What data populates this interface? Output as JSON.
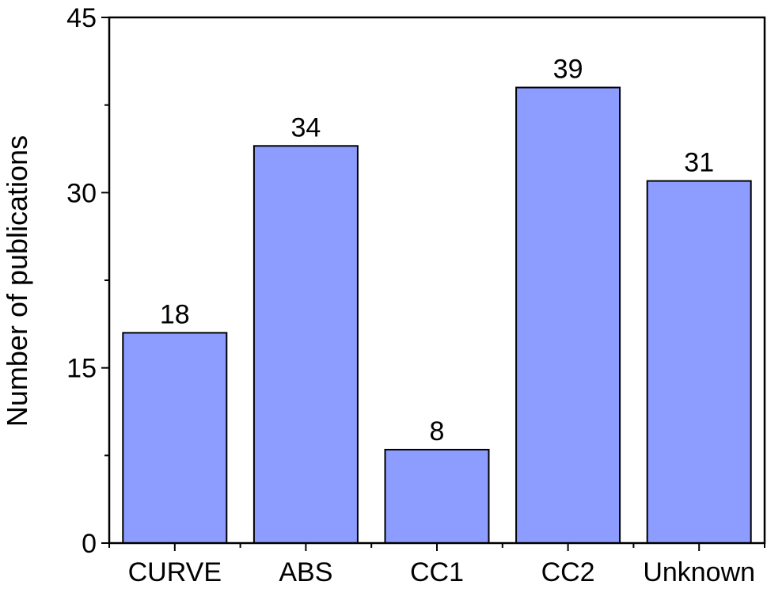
{
  "chart_data": {
    "type": "bar",
    "categories": [
      "CURVE",
      "ABS",
      "CC1",
      "CC2",
      "Unknown"
    ],
    "values": [
      18,
      34,
      8,
      39,
      31
    ],
    "data_labels": [
      "18",
      "34",
      "8",
      "39",
      "31"
    ],
    "title": "",
    "xlabel": "",
    "ylabel": "Number of publications",
    "ylim": [
      0,
      45
    ],
    "yticks": [
      0,
      15,
      30,
      45
    ],
    "ytick_labels": [
      "0",
      "15",
      "30",
      "45"
    ],
    "grid": false,
    "legend": "none",
    "bar_color": "#8c9cff",
    "bar_edge_color": "#000000"
  }
}
